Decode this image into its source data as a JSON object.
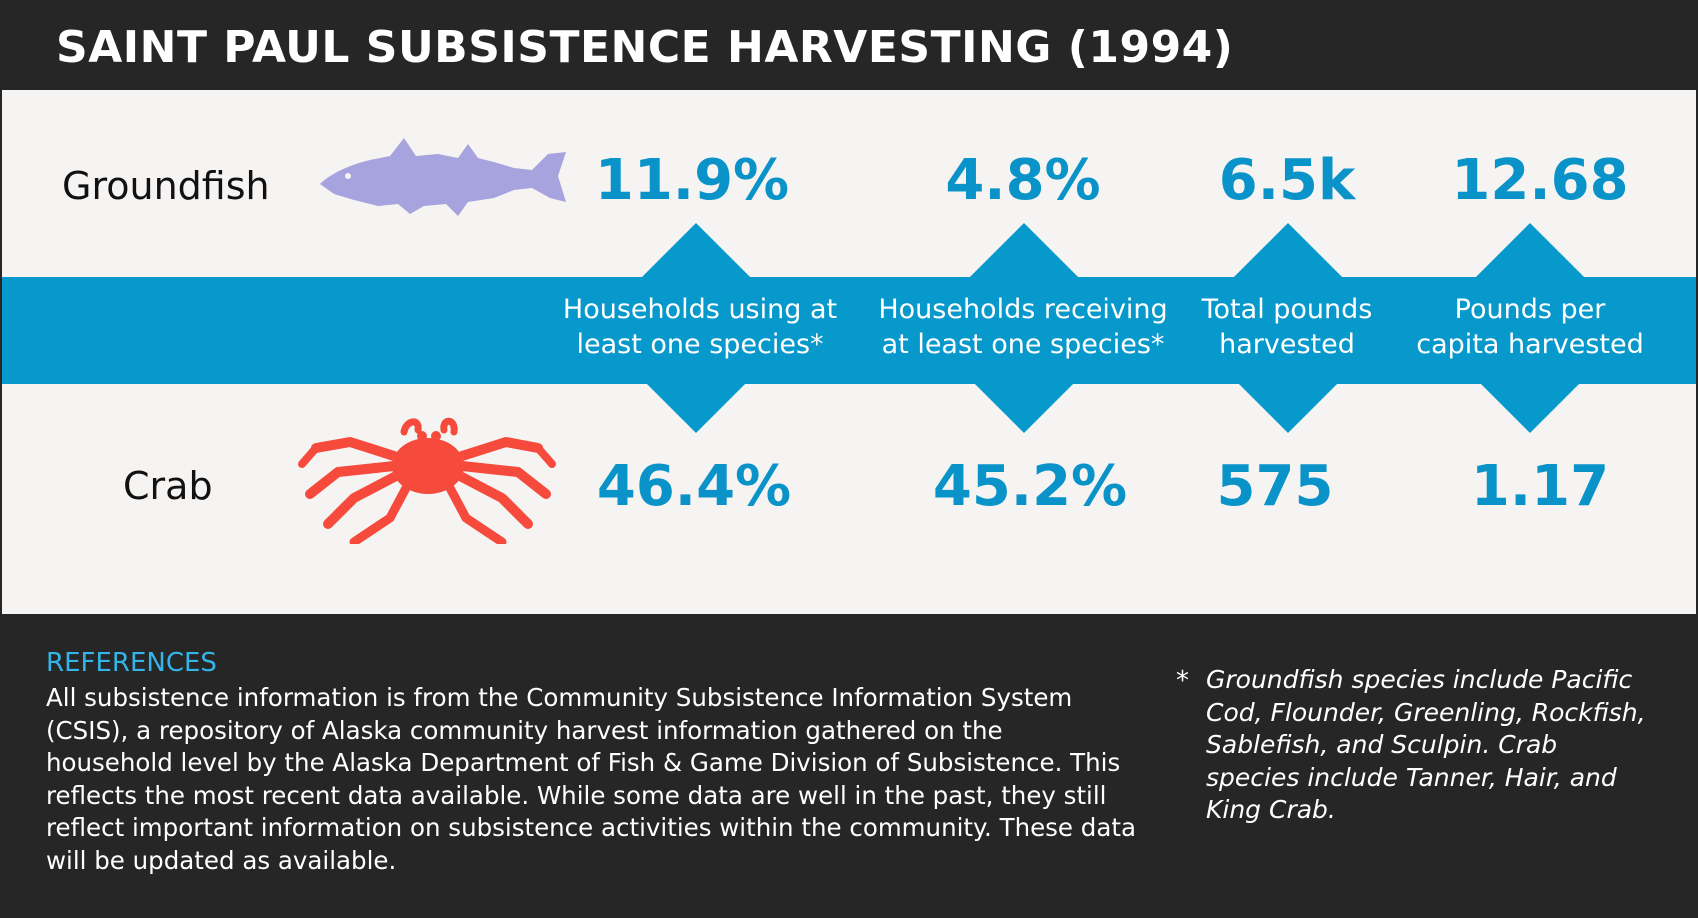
{
  "title": "SAINT PAUL SUBSISTENCE HARVESTING (1994)",
  "rows": [
    {
      "label": "Groundfish",
      "icon": "fish-icon",
      "icon_color": "#a6a3de",
      "values": [
        "11.9%",
        "4.8%",
        "6.5k",
        "12.68"
      ]
    },
    {
      "label": "Crab",
      "icon": "crab-icon",
      "icon_color": "#f54a3c",
      "values": [
        "46.4%",
        "45.2%",
        "575",
        "1.17"
      ]
    }
  ],
  "metrics": [
    {
      "line1": "Households using at",
      "line2": "least one species*"
    },
    {
      "line1": "Households receiving",
      "line2": "at least one species*"
    },
    {
      "line1": "Total pounds",
      "line2": "harvested"
    },
    {
      "line1": "Pounds per",
      "line2": "capita harvested"
    }
  ],
  "references": {
    "heading": "REFERENCES",
    "body": "All subsistence information is from the Community Subsistence Information System (CSIS), a repository of Alaska community harvest information gathered on the household level by the Alaska Department of Fish & Game Division of Subsistence. This reflects the most recent data available. While some data are well in the past, they still reflect important information on subsistence activities within the community. These data will be updated as available."
  },
  "footnote": {
    "marker": "*",
    "text": "Groundfish species include Pacific Cod, Flounder, Greenling, Rockfish, Sablefish, and Sculpin. Crab species include Tanner, Hair, and King Crab."
  },
  "colors": {
    "accent_blue": "#0899cc",
    "value_blue": "#0a93c9",
    "references_blue": "#33b5e8",
    "dark_background": "#262626",
    "panel_background": "#f6f4f2"
  }
}
